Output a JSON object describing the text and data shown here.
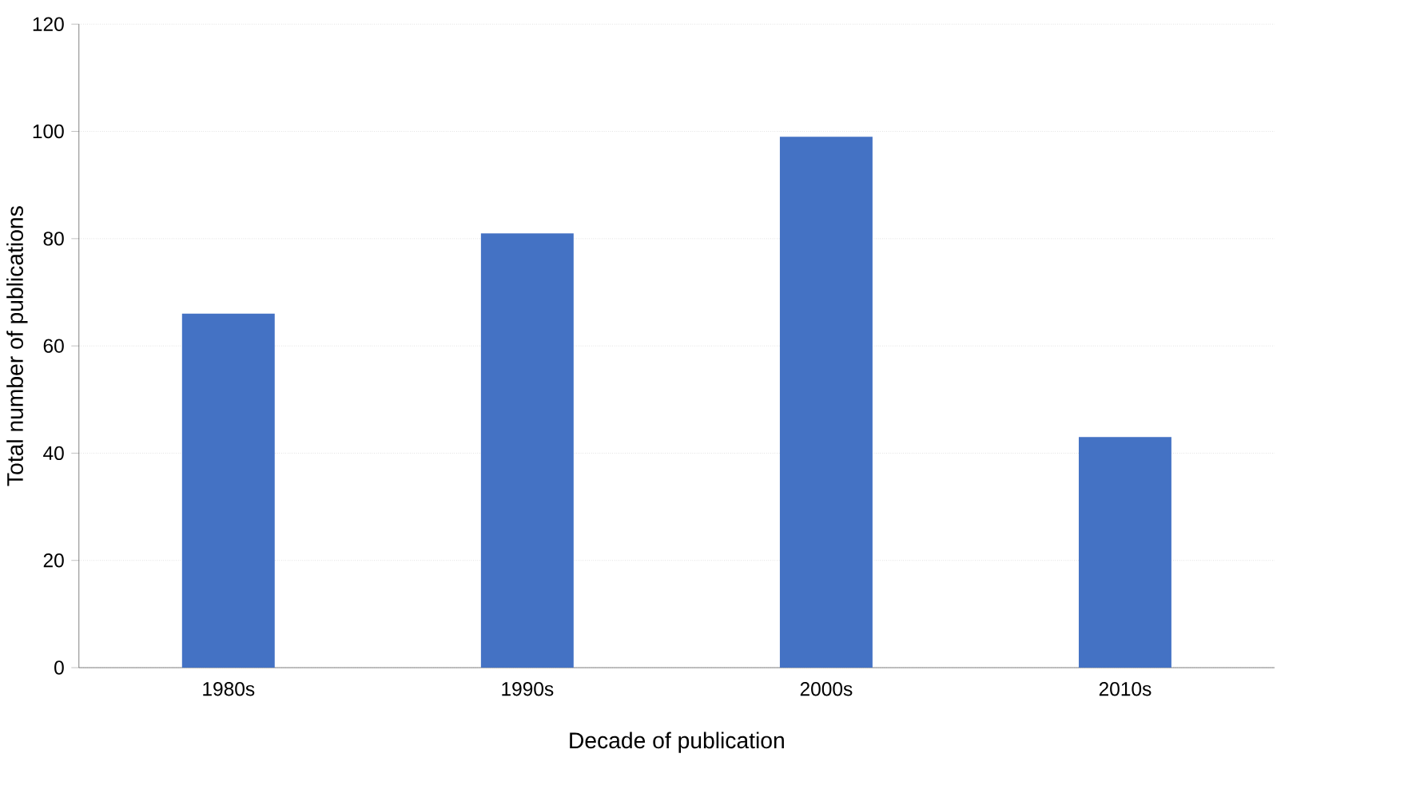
{
  "chart_data": {
    "type": "bar",
    "xlabel": "Decade of publication",
    "ylabel": "Total number of publications",
    "categories": [
      "1980s",
      "1990s",
      "2000s",
      "2010s"
    ],
    "values": [
      66,
      81,
      99,
      43
    ],
    "color": "#4472c4",
    "ylim": [
      0,
      120
    ],
    "yticks": [
      0,
      20,
      40,
      60,
      80,
      100,
      120
    ],
    "grid": "y"
  }
}
